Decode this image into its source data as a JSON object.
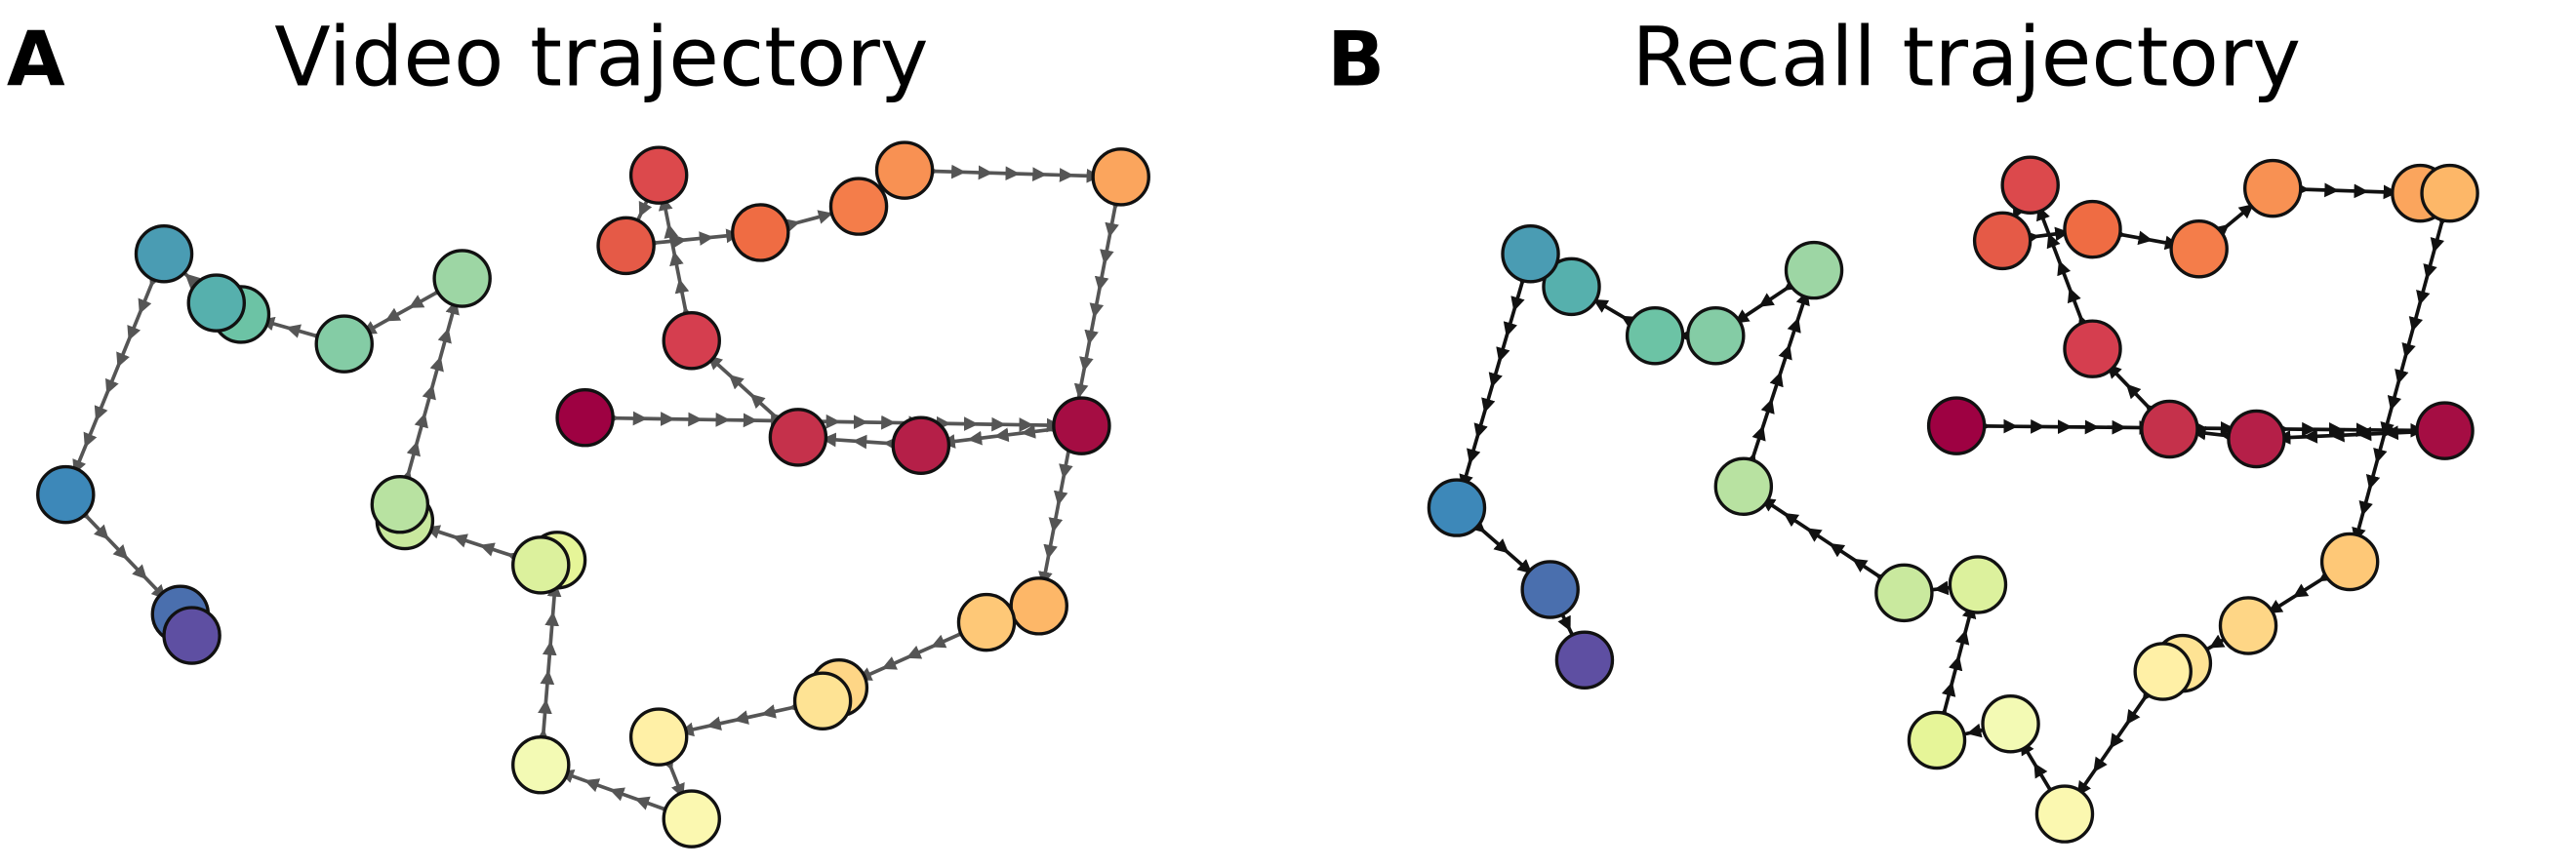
{
  "chart_data": [
    {
      "type": "trajectory",
      "panel_label": "A",
      "title": "Video trajectory",
      "edge_color": "#555555",
      "xlim": [
        0,
        760
      ],
      "ylim": [
        0,
        470
      ],
      "x": [
        355,
        658,
        560,
        485,
        420,
        400,
        380,
        462,
        522,
        550,
        682,
        632,
        600,
        510,
        500,
        400,
        420,
        328,
        338,
        328,
        245,
        242,
        280,
        208,
        145,
        130,
        98,
        38,
        108,
        115
      ],
      "y": [
        275,
        270,
        258,
        263,
        322,
        423,
        380,
        388,
        404,
        426,
        422,
        160,
        150,
        110,
        102,
        80,
        30,
        63,
        188,
        185,
        212,
        222,
        360,
        320,
        338,
        345,
        375,
        228,
        155,
        142
      ],
      "colors": [
        "#9e0142",
        "#a50d43",
        "#b51f48",
        "#c5314b",
        "#d53e4f",
        "#dc494c",
        "#e55a47",
        "#ef6c43",
        "#f47d4a",
        "#f89153",
        "#fba55d",
        "#fdb768",
        "#fec877",
        "#fed686",
        "#fee394",
        "#fff0a6",
        "#fbf8b0",
        "#f3fab4",
        "#e6f598",
        "#dcf19d",
        "#c9e99e",
        "#b8e2a1",
        "#9dd6a4",
        "#84cca5",
        "#6cc3a5",
        "#56b0ad",
        "#4a9cb3",
        "#3d88b9",
        "#4a6fae",
        "#5e4fa2"
      ]
    },
    {
      "type": "trajectory",
      "panel_label": "B",
      "title": "Recall trajectory",
      "edge_color": "#111111",
      "xlim": [
        0,
        768
      ],
      "ylim": [
        0,
        470
      ],
      "x": [
        392,
        690,
        575,
        522,
        475,
        437,
        420,
        475,
        540,
        585,
        675,
        693,
        632,
        570,
        530,
        518,
        458,
        425,
        380,
        405,
        360,
        262,
        305,
        245,
        208,
        157,
        132,
        87,
        144,
        165
      ],
      "y": [
        270,
        267,
        262,
        268,
        317,
        417,
        383,
        390,
        378,
        415,
        412,
        412,
        187,
        148,
        125,
        120,
        33,
        88,
        78,
        173,
        168,
        233,
        365,
        325,
        325,
        355,
        375,
        220,
        170,
        127
      ],
      "colors": [
        "#9e0142",
        "#a50d43",
        "#b51f48",
        "#c5314b",
        "#d53e4f",
        "#dc494c",
        "#e55a47",
        "#ef6c43",
        "#f47d4a",
        "#f89153",
        "#fba55d",
        "#fdb768",
        "#fec877",
        "#fed686",
        "#fee394",
        "#fff0a6",
        "#fbf8b0",
        "#f3fab4",
        "#e6f598",
        "#dcf19d",
        "#c9e99e",
        "#b8e2a1",
        "#9dd6a4",
        "#84cca5",
        "#6cc3a5",
        "#56b0ad",
        "#4a9cb3",
        "#3d88b9",
        "#4a6fae",
        "#5e4fa2"
      ]
    }
  ]
}
